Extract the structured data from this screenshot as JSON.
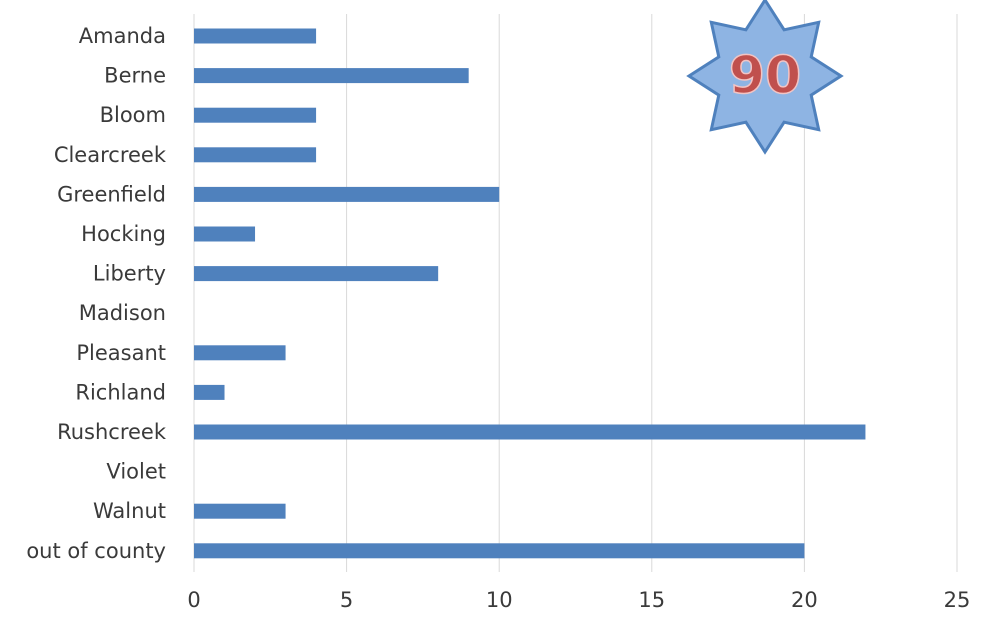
{
  "chart_data": {
    "type": "bar",
    "orientation": "horizontal",
    "categories": [
      "Amanda",
      "Berne",
      "Bloom",
      "Clearcreek",
      "Greenfield",
      "Hocking",
      "Liberty",
      "Madison",
      "Pleasant",
      "Richland",
      "Rushcreek",
      "Violet",
      "Walnut",
      "out of county"
    ],
    "values": [
      4,
      9,
      4,
      4,
      10,
      2,
      8,
      0,
      3,
      1,
      22,
      0,
      3,
      20
    ],
    "xlim": [
      0,
      25
    ],
    "xticks": [
      0,
      5,
      10,
      15,
      20,
      25
    ],
    "grid": "vertical",
    "bar_color": "#4f81bd",
    "title": "",
    "xlabel": "",
    "ylabel": ""
  },
  "badge": {
    "text": "90",
    "fill_color": "#8eb4e3",
    "border_color": "#4f81bd",
    "text_color": "#c0504d"
  }
}
